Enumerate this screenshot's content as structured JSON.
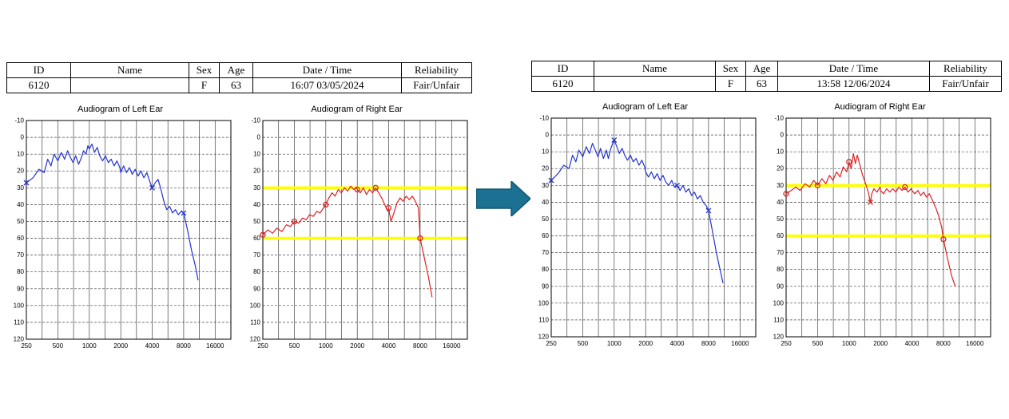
{
  "panels": [
    {
      "name": "before",
      "table": {
        "headers": [
          "ID",
          "Name",
          "Sex",
          "Age",
          "Date / Time",
          "Reliability"
        ],
        "row": [
          "6120",
          "",
          "F",
          "63",
          "16:07 03/05/2024",
          "Fair/Unfair"
        ]
      }
    },
    {
      "name": "after",
      "table": {
        "headers": [
          "ID",
          "Name",
          "Sex",
          "Age",
          "Date / Time",
          "Reliability"
        ],
        "row": [
          "6120",
          "",
          "F",
          "63",
          "13:58 12/06/2024",
          "Fair/Unfair"
        ]
      }
    }
  ],
  "arrow": {
    "fill": "#1c7092",
    "stroke": "#10576f"
  },
  "chart_data": [
    {
      "type": "line",
      "title": "Audiogram of Left Ear",
      "panel": "before",
      "color": "#2433d0",
      "ylim": [
        -10,
        120
      ],
      "ystep": 10,
      "xlabel_ticks": [
        250,
        500,
        1000,
        2000,
        4000,
        8000,
        16000
      ],
      "yellow_lines": [],
      "points": [
        [
          250,
          27
        ],
        [
          290,
          24
        ],
        [
          330,
          19
        ],
        [
          370,
          21
        ],
        [
          400,
          13
        ],
        [
          430,
          17
        ],
        [
          460,
          10
        ],
        [
          500,
          14
        ],
        [
          540,
          9
        ],
        [
          580,
          13
        ],
        [
          620,
          8
        ],
        [
          660,
          12
        ],
        [
          700,
          15
        ],
        [
          740,
          11
        ],
        [
          790,
          16
        ],
        [
          840,
          12
        ],
        [
          880,
          8
        ],
        [
          930,
          10
        ],
        [
          970,
          5
        ],
        [
          1000,
          7
        ],
        [
          1060,
          4
        ],
        [
          1120,
          9
        ],
        [
          1190,
          6
        ],
        [
          1260,
          11
        ],
        [
          1340,
          14
        ],
        [
          1430,
          11
        ],
        [
          1520,
          15
        ],
        [
          1620,
          13
        ],
        [
          1730,
          17
        ],
        [
          1840,
          14
        ],
        [
          1960,
          18
        ],
        [
          2000,
          21
        ],
        [
          2130,
          17
        ],
        [
          2270,
          21
        ],
        [
          2420,
          18
        ],
        [
          2580,
          22
        ],
        [
          2750,
          19
        ],
        [
          2930,
          23
        ],
        [
          3120,
          20
        ],
        [
          3330,
          24
        ],
        [
          3550,
          21
        ],
        [
          3780,
          26
        ],
        [
          4000,
          30
        ],
        [
          4270,
          27
        ],
        [
          4550,
          25
        ],
        [
          4850,
          31
        ],
        [
          5170,
          38
        ],
        [
          5510,
          43
        ],
        [
          5870,
          41
        ],
        [
          6260,
          45
        ],
        [
          6670,
          43
        ],
        [
          7110,
          46
        ],
        [
          7580,
          44
        ],
        [
          8000,
          45
        ],
        [
          8700,
          55
        ],
        [
          9500,
          67
        ],
        [
          10300,
          76
        ],
        [
          11000,
          85
        ]
      ],
      "markers_x": [
        [
          250,
          27
        ],
        [
          4000,
          30
        ],
        [
          8000,
          45
        ]
      ],
      "markers_o": []
    },
    {
      "type": "line",
      "title": "Audiogram of Right Ear",
      "panel": "before",
      "color": "#dd2222",
      "ylim": [
        -10,
        120
      ],
      "ystep": 10,
      "xlabel_ticks": [
        250,
        500,
        1000,
        2000,
        4000,
        8000,
        16000
      ],
      "yellow_lines": [
        30,
        60
      ],
      "points": [
        [
          250,
          58
        ],
        [
          280,
          55
        ],
        [
          310,
          57
        ],
        [
          340,
          54
        ],
        [
          380,
          56
        ],
        [
          420,
          52
        ],
        [
          460,
          53
        ],
        [
          500,
          50
        ],
        [
          550,
          51
        ],
        [
          600,
          48
        ],
        [
          650,
          49
        ],
        [
          700,
          46
        ],
        [
          760,
          47
        ],
        [
          820,
          44
        ],
        [
          880,
          45
        ],
        [
          950,
          42
        ],
        [
          1000,
          40
        ],
        [
          1070,
          36
        ],
        [
          1150,
          33
        ],
        [
          1230,
          35
        ],
        [
          1320,
          31
        ],
        [
          1410,
          33
        ],
        [
          1510,
          30
        ],
        [
          1620,
          32
        ],
        [
          1730,
          29
        ],
        [
          1850,
          31
        ],
        [
          1980,
          30
        ],
        [
          2000,
          31
        ],
        [
          2140,
          33
        ],
        [
          2290,
          30
        ],
        [
          2450,
          34
        ],
        [
          2620,
          31
        ],
        [
          2800,
          33
        ],
        [
          3000,
          30
        ],
        [
          3210,
          33
        ],
        [
          3430,
          36
        ],
        [
          3670,
          40
        ],
        [
          3930,
          44
        ],
        [
          4000,
          42
        ],
        [
          4200,
          50
        ],
        [
          4490,
          45
        ],
        [
          4800,
          39
        ],
        [
          5140,
          36
        ],
        [
          5500,
          38
        ],
        [
          5880,
          35
        ],
        [
          6290,
          37
        ],
        [
          6730,
          35
        ],
        [
          7200,
          38
        ],
        [
          7700,
          42
        ],
        [
          8000,
          60
        ],
        [
          8800,
          72
        ],
        [
          9600,
          83
        ],
        [
          10400,
          95
        ]
      ],
      "markers_x": [],
      "markers_o": [
        [
          250,
          58
        ],
        [
          500,
          50
        ],
        [
          1000,
          40
        ],
        [
          2000,
          31
        ],
        [
          3000,
          30
        ],
        [
          4000,
          42
        ],
        [
          8000,
          60
        ]
      ]
    },
    {
      "type": "line",
      "title": "Audiogram of Left Ear",
      "panel": "after",
      "color": "#2433d0",
      "ylim": [
        -10,
        120
      ],
      "ystep": 10,
      "xlabel_ticks": [
        250,
        500,
        1000,
        2000,
        4000,
        8000,
        16000
      ],
      "yellow_lines": [],
      "points": [
        [
          250,
          27
        ],
        [
          290,
          23
        ],
        [
          330,
          18
        ],
        [
          370,
          20
        ],
        [
          400,
          12
        ],
        [
          430,
          16
        ],
        [
          460,
          9
        ],
        [
          500,
          13
        ],
        [
          540,
          7
        ],
        [
          580,
          11
        ],
        [
          620,
          5
        ],
        [
          660,
          9
        ],
        [
          700,
          13
        ],
        [
          740,
          8
        ],
        [
          790,
          14
        ],
        [
          840,
          9
        ],
        [
          880,
          14
        ],
        [
          930,
          8
        ],
        [
          970,
          5
        ],
        [
          1000,
          3
        ],
        [
          1060,
          7
        ],
        [
          1120,
          11
        ],
        [
          1190,
          8
        ],
        [
          1260,
          12
        ],
        [
          1340,
          15
        ],
        [
          1430,
          12
        ],
        [
          1520,
          16
        ],
        [
          1620,
          14
        ],
        [
          1730,
          18
        ],
        [
          1840,
          15
        ],
        [
          1960,
          19
        ],
        [
          2000,
          22
        ],
        [
          2130,
          25
        ],
        [
          2270,
          22
        ],
        [
          2420,
          26
        ],
        [
          2580,
          23
        ],
        [
          2750,
          27
        ],
        [
          2930,
          24
        ],
        [
          3120,
          28
        ],
        [
          3330,
          30
        ],
        [
          3550,
          27
        ],
        [
          3780,
          31
        ],
        [
          4000,
          30
        ],
        [
          4270,
          33
        ],
        [
          4550,
          30
        ],
        [
          4850,
          34
        ],
        [
          5170,
          32
        ],
        [
          5510,
          36
        ],
        [
          5870,
          34
        ],
        [
          6260,
          38
        ],
        [
          6670,
          36
        ],
        [
          7110,
          40
        ],
        [
          7580,
          42
        ],
        [
          8000,
          45
        ],
        [
          8700,
          57
        ],
        [
          9500,
          70
        ],
        [
          10300,
          80
        ],
        [
          11000,
          88
        ]
      ],
      "markers_x": [
        [
          250,
          27
        ],
        [
          1000,
          3
        ],
        [
          4000,
          30
        ],
        [
          8000,
          45
        ]
      ],
      "markers_o": []
    },
    {
      "type": "line",
      "title": "Audiogram of Right Ear",
      "panel": "after",
      "color": "#dd2222",
      "ylim": [
        -10,
        120
      ],
      "ystep": 10,
      "xlabel_ticks": [
        250,
        500,
        1000,
        2000,
        4000,
        8000,
        16000
      ],
      "yellow_lines": [
        30,
        60
      ],
      "points": [
        [
          250,
          35
        ],
        [
          280,
          33
        ],
        [
          310,
          31
        ],
        [
          340,
          33
        ],
        [
          380,
          29
        ],
        [
          420,
          31
        ],
        [
          460,
          27
        ],
        [
          500,
          30
        ],
        [
          550,
          26
        ],
        [
          600,
          29
        ],
        [
          650,
          24
        ],
        [
          700,
          27
        ],
        [
          760,
          22
        ],
        [
          820,
          25
        ],
        [
          880,
          19
        ],
        [
          950,
          22
        ],
        [
          1000,
          16
        ],
        [
          1050,
          20
        ],
        [
          1100,
          11
        ],
        [
          1150,
          17
        ],
        [
          1200,
          12
        ],
        [
          1270,
          18
        ],
        [
          1350,
          24
        ],
        [
          1440,
          29
        ],
        [
          1530,
          34
        ],
        [
          1600,
          40
        ],
        [
          1650,
          35
        ],
        [
          1730,
          32
        ],
        [
          1850,
          34
        ],
        [
          1980,
          31
        ],
        [
          2000,
          33
        ],
        [
          2140,
          35
        ],
        [
          2290,
          32
        ],
        [
          2450,
          34
        ],
        [
          2620,
          32
        ],
        [
          2800,
          34
        ],
        [
          3000,
          31
        ],
        [
          3210,
          33
        ],
        [
          3430,
          31
        ],
        [
          3670,
          34
        ],
        [
          3930,
          32
        ],
        [
          4000,
          33
        ],
        [
          4270,
          35
        ],
        [
          4550,
          33
        ],
        [
          4850,
          36
        ],
        [
          5170,
          34
        ],
        [
          5510,
          37
        ],
        [
          5870,
          35
        ],
        [
          6290,
          39
        ],
        [
          6730,
          43
        ],
        [
          7200,
          48
        ],
        [
          7700,
          55
        ],
        [
          8000,
          62
        ],
        [
          8800,
          74
        ],
        [
          9600,
          84
        ],
        [
          10400,
          90
        ]
      ],
      "markers_x": [
        [
          1600,
          40
        ]
      ],
      "markers_o": [
        [
          250,
          35
        ],
        [
          500,
          30
        ],
        [
          1000,
          16
        ],
        [
          3430,
          31
        ],
        [
          8000,
          62
        ]
      ]
    }
  ]
}
